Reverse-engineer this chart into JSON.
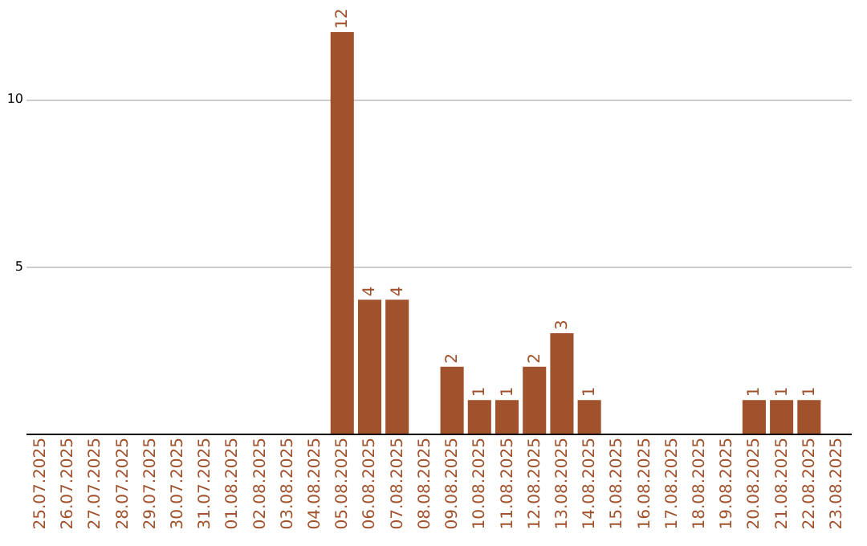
{
  "chart_data": {
    "type": "bar",
    "categories": [
      "25.07.2025",
      "26.07.2025",
      "27.07.2025",
      "28.07.2025",
      "29.07.2025",
      "30.07.2025",
      "31.07.2025",
      "01.08.2025",
      "02.08.2025",
      "03.08.2025",
      "04.08.2025",
      "05.08.2025",
      "06.08.2025",
      "07.08.2025",
      "08.08.2025",
      "09.08.2025",
      "10.08.2025",
      "11.08.2025",
      "12.08.2025",
      "13.08.2025",
      "14.08.2025",
      "15.08.2025",
      "16.08.2025",
      "17.08.2025",
      "18.08.2025",
      "19.08.2025",
      "20.08.2025",
      "21.08.2025",
      "22.08.2025",
      "23.08.2025"
    ],
    "values": [
      0,
      0,
      0,
      0,
      0,
      0,
      0,
      0,
      0,
      0,
      0,
      12,
      4,
      4,
      0,
      2,
      1,
      1,
      2,
      3,
      1,
      0,
      0,
      0,
      0,
      0,
      1,
      1,
      1,
      0
    ],
    "value_labels": [
      null,
      null,
      null,
      null,
      null,
      null,
      null,
      null,
      null,
      null,
      null,
      "12",
      "4",
      "4",
      null,
      "2",
      "1",
      "1",
      "2",
      "3",
      "1",
      null,
      null,
      null,
      null,
      null,
      "1",
      "1",
      "1",
      null
    ],
    "color": "#a0522d",
    "ylim": [
      0,
      12
    ],
    "yticks": [
      5,
      10
    ],
    "grid": "y"
  }
}
